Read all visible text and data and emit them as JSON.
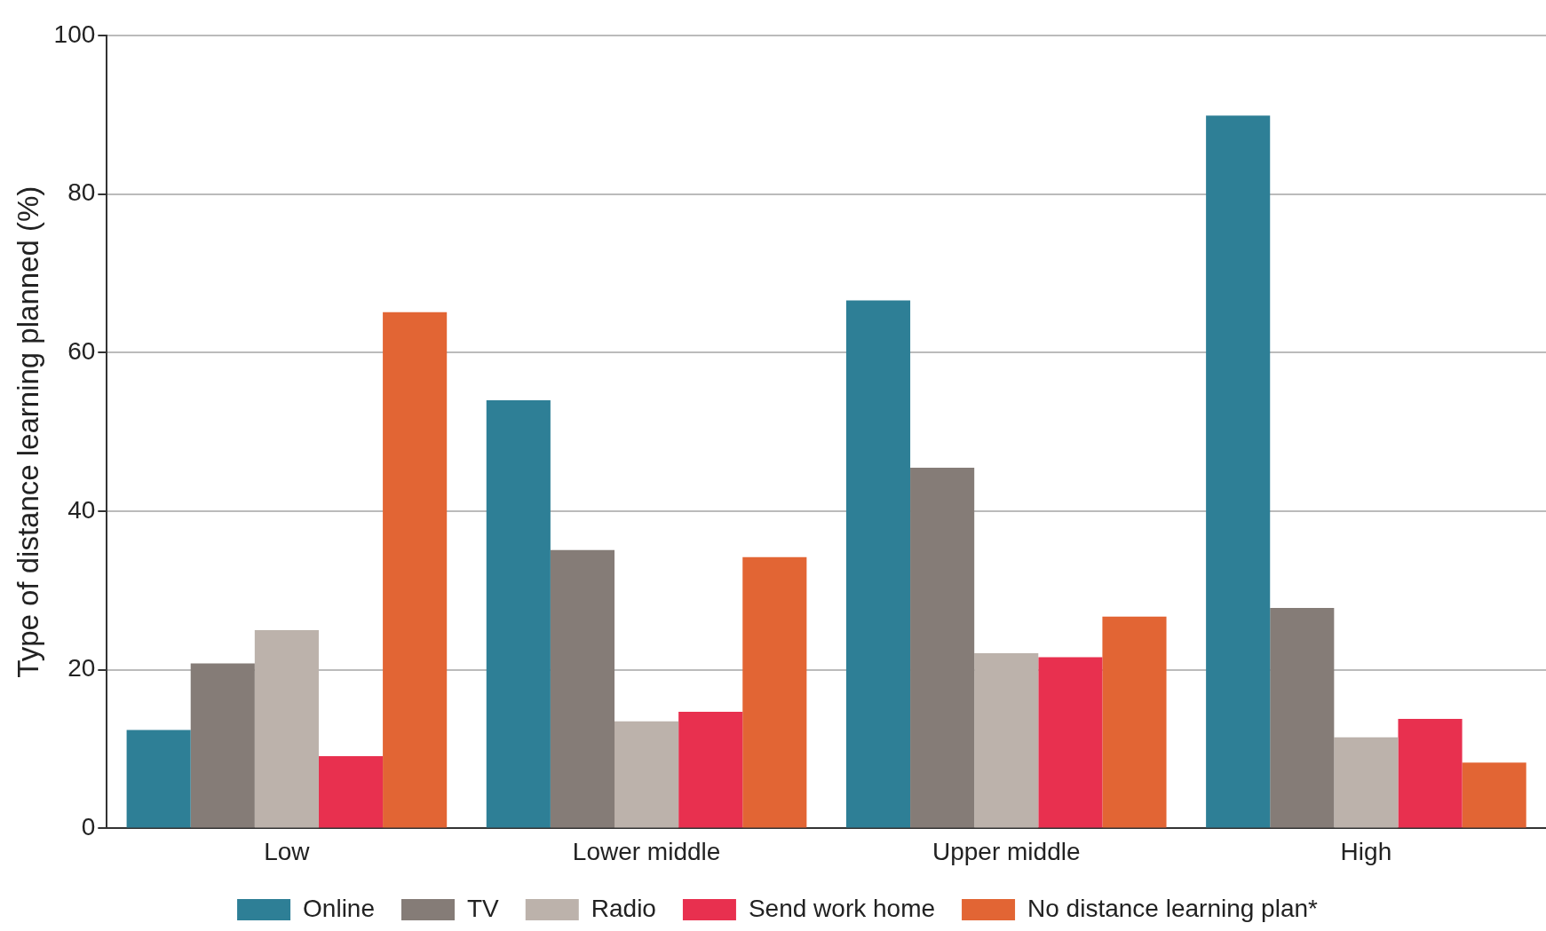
{
  "chart_data": {
    "type": "bar",
    "ylabel": "Type of distance learning planned (%)",
    "categories": [
      "Low",
      "Lower middle",
      "Upper middle",
      "High"
    ],
    "series": [
      {
        "name": "Online",
        "color": "#2e7f96",
        "values": [
          12.4,
          54,
          66.6,
          89.9
        ]
      },
      {
        "name": "TV",
        "color": "#857c77",
        "values": [
          20.8,
          35.1,
          45.5,
          27.8
        ]
      },
      {
        "name": "Radio",
        "color": "#bcb2ab",
        "values": [
          25,
          13.5,
          22.1,
          11.5
        ]
      },
      {
        "name": "Send work home",
        "color": "#e8304f",
        "values": [
          9.1,
          14.7,
          21.6,
          13.8
        ]
      },
      {
        "name": "No distance learning plan*",
        "color": "#e26534",
        "values": [
          65.1,
          34.2,
          26.7,
          8.3
        ]
      }
    ],
    "ylim": [
      0,
      100
    ],
    "yticks": [
      0,
      20,
      40,
      60,
      80,
      100
    ],
    "grid": "y",
    "legend": "bottom"
  }
}
